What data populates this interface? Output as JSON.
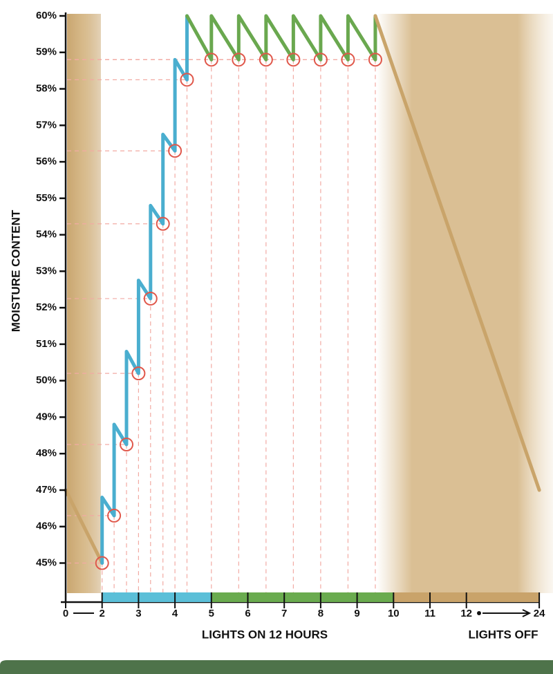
{
  "chart_data": {
    "type": "line",
    "ylabel": "MOISTURE CONTENT",
    "xlabels": [
      "LIGHTS ON 12 HOURS",
      "LIGHTS OFF"
    ],
    "ylim": [
      44.1,
      60
    ],
    "yticks": [
      {
        "value": 45,
        "label": "45%"
      },
      {
        "value": 46,
        "label": "46%"
      },
      {
        "value": 47,
        "label": "47%"
      },
      {
        "value": 48,
        "label": "48%"
      },
      {
        "value": 49,
        "label": "49%"
      },
      {
        "value": 50,
        "label": "50%"
      },
      {
        "value": 51,
        "label": "51%"
      },
      {
        "value": 52,
        "label": "52%"
      },
      {
        "value": 53,
        "label": "53%"
      },
      {
        "value": 54,
        "label": "54%"
      },
      {
        "value": 55,
        "label": "55%"
      },
      {
        "value": 56,
        "label": "56%"
      },
      {
        "value": 57,
        "label": "57%"
      },
      {
        "value": 58,
        "label": "58%"
      },
      {
        "value": 59,
        "label": "59%"
      },
      {
        "value": 60,
        "label": "60%"
      }
    ],
    "xticks": [
      0,
      2,
      3,
      4,
      5,
      6,
      7,
      8,
      9,
      10,
      11,
      12,
      24
    ],
    "series": [
      {
        "color": "#c9a46a",
        "x": [
          0,
          2
        ],
        "values": [
          47,
          45
        ]
      },
      {
        "color": "#4aaecf",
        "x": [
          2,
          2,
          2.33,
          2.33,
          2.67,
          2.67,
          3,
          3,
          3.33,
          3.33,
          3.67,
          3.67,
          4,
          4,
          4.33,
          4.33
        ],
        "values": [
          45,
          46.8,
          46.3,
          48.8,
          48.25,
          50.8,
          50.2,
          52.75,
          52.25,
          54.8,
          54.3,
          56.75,
          56.3,
          58.8,
          58.25,
          60
        ]
      },
      {
        "color": "#6aa84f",
        "x": [
          4.33,
          5,
          5,
          5.75,
          5.75,
          6.5,
          6.5,
          7.25,
          7.25,
          8,
          8,
          8.75,
          8.75,
          9.5,
          9.5
        ],
        "values": [
          60,
          58.8,
          60,
          58.8,
          60,
          58.8,
          60,
          58.8,
          60,
          58.8,
          60,
          58.8,
          60,
          58.8,
          60
        ]
      },
      {
        "color": "#c9a46a",
        "x": [
          9.5,
          24
        ],
        "values": [
          60,
          47
        ]
      }
    ],
    "markers": {
      "color": "#e0574a",
      "x": [
        2,
        2.33,
        2.67,
        3,
        3.33,
        3.67,
        4,
        4.33,
        5,
        5.75,
        6.5,
        7.25,
        8,
        8.75,
        9.5
      ],
      "values": [
        45,
        46.3,
        48.25,
        50.2,
        52.25,
        54.3,
        56.3,
        58.25,
        58.8,
        58.8,
        58.8,
        58.8,
        58.8,
        58.8,
        58.8
      ]
    },
    "phases": [
      {
        "from": 2,
        "to": 5,
        "color": "#5bbfd8"
      },
      {
        "from": 5,
        "to": 10,
        "color": "#6aab4f"
      },
      {
        "from": 10,
        "to": 24,
        "color": "#c9a36a"
      }
    ]
  }
}
